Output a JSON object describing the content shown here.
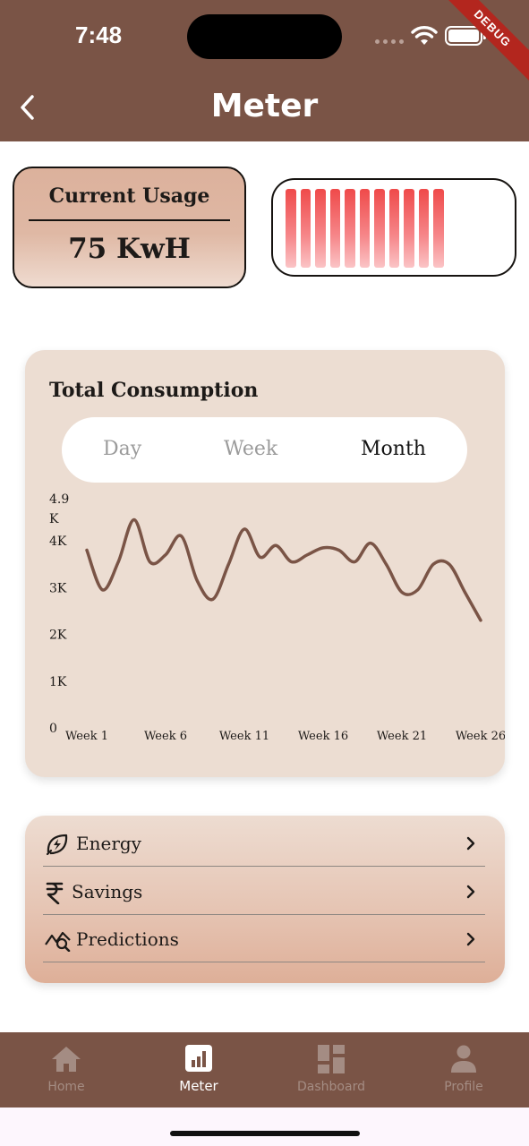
{
  "status_bar": {
    "time": "7:48",
    "debug_banner": "DEBUG"
  },
  "app_bar": {
    "title": "Meter",
    "back_icon": "chevron-left-icon"
  },
  "usage": {
    "label": "Current Usage",
    "value": "75 KwH"
  },
  "battery_meter": {
    "filled_bars": 11,
    "total_bars": 11,
    "bar_color": "#ef4a4a"
  },
  "consumption": {
    "title": "Total Consumption",
    "tabs": [
      {
        "label": "Day",
        "active": false
      },
      {
        "label": "Week",
        "active": false
      },
      {
        "label": "Month",
        "active": true
      }
    ]
  },
  "chart_data": {
    "type": "line",
    "x": [
      "Week 1",
      "Week 2",
      "Week 3",
      "Week 4",
      "Week 5",
      "Week 6",
      "Week 7",
      "Week 8",
      "Week 9",
      "Week 10",
      "Week 11",
      "Week 12",
      "Week 13",
      "Week 14",
      "Week 15",
      "Week 16",
      "Week 17",
      "Week 18",
      "Week 19",
      "Week 20",
      "Week 21",
      "Week 22",
      "Week 23",
      "Week 24",
      "Week 25",
      "Week 26"
    ],
    "x_tick_labels": [
      "Week 1",
      "Week 6",
      "Week 11",
      "Week 16",
      "Week 21",
      "Week 26"
    ],
    "x_tick_indices": [
      0,
      5,
      10,
      15,
      20,
      25
    ],
    "y_tick_labels": [
      "0",
      "1K",
      "2K",
      "3K",
      "4K",
      "4.9\nK"
    ],
    "y_tick_values": [
      0,
      1000,
      2000,
      3000,
      4000,
      4900
    ],
    "ylim": [
      0,
      4900
    ],
    "series": [
      {
        "values": [
          3800,
          2950,
          3550,
          4450,
          3550,
          3700,
          4100,
          3150,
          2750,
          3500,
          4250,
          3650,
          3900,
          3550,
          3700,
          3850,
          3800,
          3550,
          3950,
          3500,
          2900,
          2950,
          3500,
          3500,
          2900,
          2300
        ]
      }
    ],
    "line_color": "#7a5446",
    "grid": false
  },
  "menu": {
    "items": [
      {
        "label": "Energy",
        "icon": "leaf-bolt-icon"
      },
      {
        "label": "Savings",
        "icon": "rupee-icon"
      },
      {
        "label": "Predictions",
        "icon": "chart-search-icon"
      }
    ]
  },
  "bottom_nav": {
    "items": [
      {
        "label": "Home",
        "icon": "home-icon",
        "active": false
      },
      {
        "label": "Meter",
        "icon": "bar-chart-icon",
        "active": true
      },
      {
        "label": "Dashboard",
        "icon": "dashboard-icon",
        "active": false
      },
      {
        "label": "Profile",
        "icon": "person-icon",
        "active": false
      }
    ]
  }
}
